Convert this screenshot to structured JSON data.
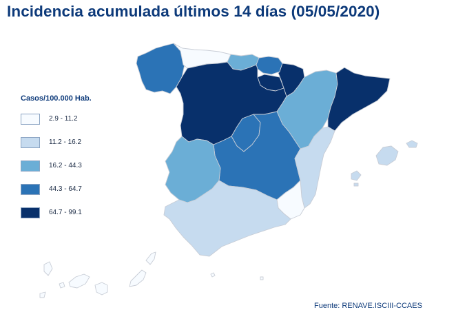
{
  "title": "Incidencia acumulada últimos 14 días (05/05/2020)",
  "legend": {
    "title": "Casos/100.000 Hab.",
    "items": [
      {
        "range": "2.9 - 11.2",
        "color": "#f7fbff"
      },
      {
        "range": "11.2 - 16.2",
        "color": "#c6dbef"
      },
      {
        "range": "16.2 - 44.3",
        "color": "#6baed6"
      },
      {
        "range": "44.3 - 64.7",
        "color": "#2b73b6"
      },
      {
        "range": "64.7 - 99.1",
        "color": "#08306b"
      }
    ]
  },
  "regions": [
    {
      "id": "galicia",
      "class": 3
    },
    {
      "id": "asturias",
      "class": 0
    },
    {
      "id": "cantabria",
      "class": 2
    },
    {
      "id": "pais-vasco",
      "class": 3
    },
    {
      "id": "navarra",
      "class": 4
    },
    {
      "id": "la-rioja",
      "class": 4
    },
    {
      "id": "castilla-y-leon",
      "class": 4
    },
    {
      "id": "aragon",
      "class": 2
    },
    {
      "id": "cataluna",
      "class": 4
    },
    {
      "id": "madrid",
      "class": 3
    },
    {
      "id": "castilla-la-mancha",
      "class": 3
    },
    {
      "id": "extremadura",
      "class": 2
    },
    {
      "id": "comunidad-valenciana",
      "class": 1
    },
    {
      "id": "murcia",
      "class": 0
    },
    {
      "id": "andalucia",
      "class": 1
    },
    {
      "id": "islas-baleares",
      "class": 1
    },
    {
      "id": "islas-canarias",
      "class": 0
    },
    {
      "id": "ceuta",
      "class": 0
    },
    {
      "id": "melilla",
      "class": 0
    }
  ],
  "source": "Fuente: RENAVE.ISCIII-CCAES"
}
